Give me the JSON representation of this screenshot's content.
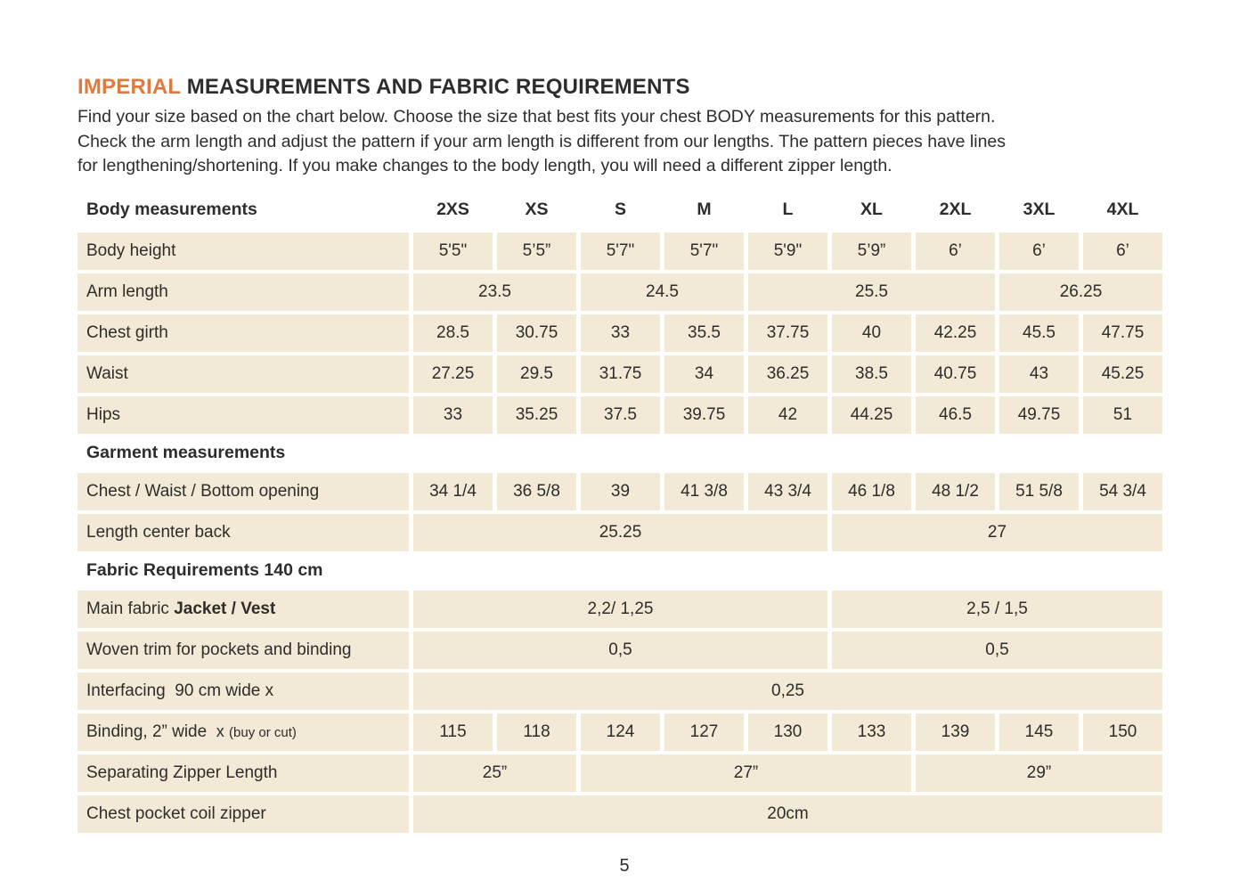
{
  "colors": {
    "accent_orange": "#de7a3d",
    "cell_beige": "#f2e9d6",
    "text_dark": "#2e2d2b"
  },
  "header": {
    "title_accent": "IMPERIAL",
    "title_rest": " MEASUREMENTS AND FABRIC REQUIREMENTS",
    "intro_lines": [
      "Find your size based on the chart below. Choose the size that best fits your chest BODY measurements for this pattern.",
      "Check the arm length and adjust the pattern if your arm length is different from our lengths. The pattern pieces have lines",
      "for lengthening/shortening. If you make changes to the body length, you will need a different zipper length."
    ]
  },
  "table": {
    "header": {
      "label": "Body measurements",
      "sizes": [
        "2XS",
        "XS",
        "S",
        "M",
        "L",
        "XL",
        "2XL",
        "3XL",
        "4XL"
      ]
    },
    "rows": {
      "body_height": {
        "label": "Body height",
        "values": [
          "5'5\"",
          "5’5”",
          "5'7\"",
          "5'7\"",
          "5'9\"",
          "5’9”",
          "6’",
          "6’",
          "6’"
        ]
      },
      "arm_length": {
        "label": "Arm length",
        "values": [
          "23.5",
          "24.5",
          "25.5",
          "26.25"
        ]
      },
      "chest_girth": {
        "label": "Chest girth",
        "values": [
          "28.5",
          "30.75",
          "33",
          "35.5",
          "37.75",
          "40",
          "42.25",
          "45.5",
          "47.75"
        ]
      },
      "waist": {
        "label": "Waist",
        "values": [
          "27.25",
          "29.5",
          "31.75",
          "34",
          "36.25",
          "38.5",
          "40.75",
          "43",
          "45.25"
        ]
      },
      "hips": {
        "label": "Hips",
        "values": [
          "33",
          "35.25",
          "37.5",
          "39.75",
          "42",
          "44.25",
          "46.5",
          "49.75",
          "51"
        ]
      },
      "garment_section": {
        "label": "Garment measurements"
      },
      "chest_waist_bottom": {
        "label": "Chest / Waist / Bottom opening",
        "values": [
          "34 1/4",
          "36 5/8",
          "39",
          "41 3/8",
          "43 3/4",
          "46 1/8",
          "48 1/2",
          "51 5/8",
          "54 3/4"
        ]
      },
      "length_center_back": {
        "label": "Length center back",
        "values": [
          "25.25",
          "27"
        ]
      },
      "fabric_section": {
        "label": "Fabric Requirements 140 cm"
      },
      "main_fabric": {
        "label_regular": "Main fabric ",
        "label_bold": "Jacket / Vest",
        "values": [
          "2,2/ 1,25",
          "2,5 / 1,5"
        ]
      },
      "woven_trim": {
        "label": "Woven trim for pockets and binding",
        "values": [
          "0,5",
          "0,5"
        ]
      },
      "interfacing": {
        "label": "Interfacing  90 cm wide x",
        "values": [
          "0,25"
        ]
      },
      "binding": {
        "label_main": "Binding, 2” wide",
        "label_x": "x",
        "label_note": "(buy or cut)",
        "values": [
          "115",
          "118",
          "124",
          "127",
          "130",
          "133",
          "139",
          "145",
          "150"
        ]
      },
      "zipper": {
        "label": "Separating Zipper Length",
        "values": [
          "25”",
          "27”",
          "29”"
        ]
      },
      "chest_pocket": {
        "label": "Chest pocket coil zipper",
        "values": [
          "20cm"
        ]
      }
    }
  },
  "footer": {
    "page_number": "5"
  }
}
